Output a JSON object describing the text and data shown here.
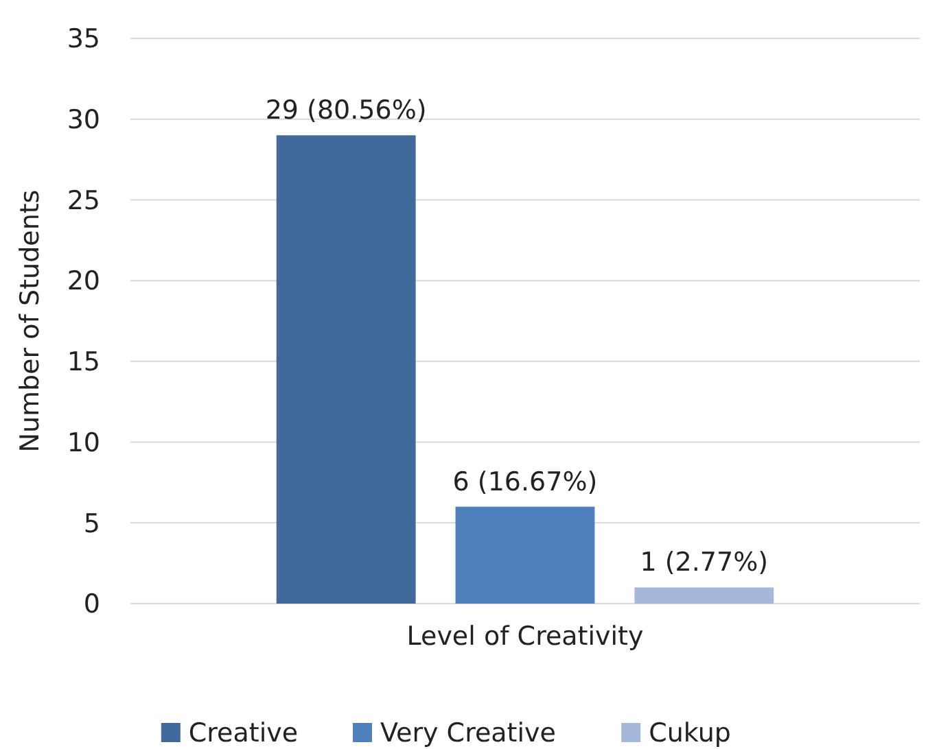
{
  "chart_data": {
    "type": "bar",
    "ylabel": "Number of Students",
    "categories": [
      "Level of Creativity"
    ],
    "series": [
      {
        "name": "Creative",
        "color": "#41699b",
        "values": [
          29
        ],
        "value_labels": [
          "29 (80.56%)"
        ]
      },
      {
        "name": "Very Creative",
        "color": "#4e80bd",
        "values": [
          6
        ],
        "value_labels": [
          "6 (16.67%)"
        ]
      },
      {
        "name": "Cukup",
        "color": "#a5b8d9",
        "values": [
          1
        ],
        "value_labels": [
          "1 (2.77%)"
        ]
      }
    ],
    "ylim": [
      0,
      35
    ],
    "yticks": [
      0,
      5,
      10,
      15,
      20,
      25,
      30,
      35
    ],
    "grid": "y",
    "legend": "bottom"
  }
}
